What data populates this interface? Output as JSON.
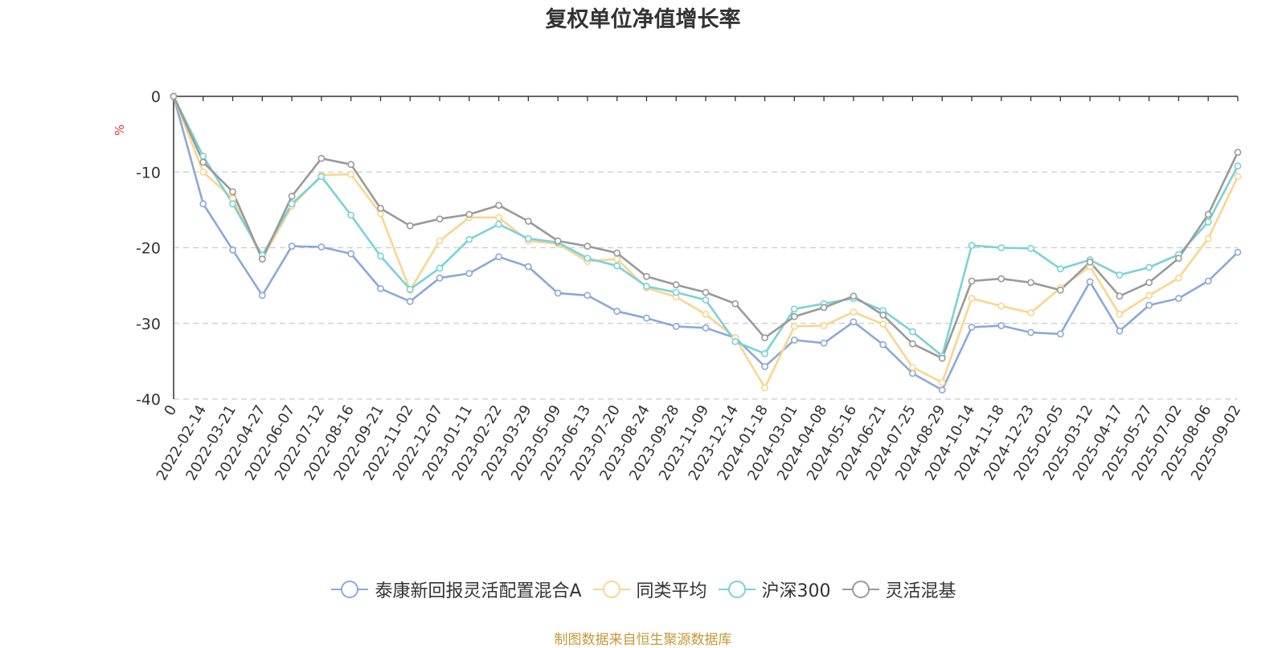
{
  "chart_data": {
    "type": "line",
    "title": "复权单位净值增长率",
    "ylabel": "%",
    "ylim": [
      -40,
      0
    ],
    "y_ticks": [
      0,
      -10,
      -20,
      -30,
      -40
    ],
    "grid": true,
    "legend_position": "bottom",
    "source": "制图数据来自恒生聚源数据库",
    "x_labels": [
      "0",
      "2022-02-14",
      "2022-03-21",
      "2022-04-27",
      "2022-06-07",
      "2022-07-12",
      "2022-08-16",
      "2022-09-21",
      "2022-11-02",
      "2022-12-07",
      "2023-01-11",
      "2023-02-22",
      "2023-03-29",
      "2023-05-09",
      "2023-06-13",
      "2023-07-20",
      "2023-08-24",
      "2023-09-28",
      "2023-11-09",
      "2023-12-14",
      "2024-01-18",
      "2024-03-01",
      "2024-04-08",
      "2024-05-16",
      "2024-06-21",
      "2024-07-25",
      "2024-08-29",
      "2024-10-14",
      "2024-11-18",
      "2024-12-23",
      "2025-02-05",
      "2025-03-12",
      "2025-04-17",
      "2025-05-27",
      "2025-07-02",
      "2025-08-06",
      "2025-09-02"
    ],
    "series": [
      {
        "name": "泰康新回报灵活配置混合A",
        "color": "#8ba9d8",
        "values": [
          0,
          -14.2,
          -20.3,
          -26.3,
          -19.8,
          -19.9,
          -20.8,
          -25.4,
          -27.1,
          -24.0,
          -23.4,
          -21.2,
          -22.5,
          -26.0,
          -26.3,
          -28.4,
          -29.3,
          -30.4,
          -30.6,
          -31.9,
          -35.7,
          -32.2,
          -32.6,
          -29.8,
          -32.8,
          -36.6,
          -38.8,
          -30.5,
          -30.3,
          -31.2,
          -31.4,
          -24.5,
          -31.0,
          -27.6,
          -26.7,
          -24.4,
          -20.6
        ]
      },
      {
        "name": "同类平均",
        "color": "#f9d58e",
        "values": [
          0,
          -10.0,
          -13.5,
          -21.5,
          -14.5,
          -10.4,
          -10.3,
          -15.5,
          -25.6,
          -19.1,
          -16.0,
          -16.0,
          -19.1,
          -19.5,
          -21.8,
          -21.5,
          -25.3,
          -26.5,
          -28.8,
          -31.9,
          -38.5,
          -30.4,
          -30.3,
          -28.5,
          -30.1,
          -35.8,
          -37.8,
          -26.7,
          -27.7,
          -28.6,
          -25.3,
          -22.5,
          -28.8,
          -26.3,
          -24.0,
          -18.8,
          -10.6
        ]
      },
      {
        "name": "沪深300",
        "color": "#79d2d8",
        "values": [
          0,
          -7.9,
          -14.2,
          -21.0,
          -14.2,
          -10.6,
          -15.7,
          -21.1,
          -25.5,
          -22.7,
          -18.9,
          -16.9,
          -18.8,
          -19.3,
          -21.4,
          -22.4,
          -25.1,
          -25.9,
          -26.9,
          -32.4,
          -34.0,
          -28.1,
          -27.4,
          -26.7,
          -28.3,
          -31.1,
          -34.3,
          -19.7,
          -20.0,
          -20.1,
          -22.8,
          -21.6,
          -23.6,
          -22.6,
          -20.9,
          -16.6,
          -9.2
        ]
      },
      {
        "name": "灵活混基",
        "color": "#9a9a9a",
        "values": [
          0,
          -8.7,
          -12.6,
          -21.5,
          -13.2,
          -8.2,
          -9.0,
          -14.8,
          -17.1,
          -16.2,
          -15.6,
          -14.4,
          -16.5,
          -19.1,
          -19.8,
          -20.7,
          -23.8,
          -24.9,
          -25.9,
          -27.4,
          -31.9,
          -29.1,
          -27.9,
          -26.4,
          -28.9,
          -32.7,
          -34.6,
          -24.4,
          -24.1,
          -24.6,
          -25.6,
          -21.9,
          -26.4,
          -24.6,
          -21.4,
          -15.6,
          -7.4
        ]
      }
    ]
  }
}
